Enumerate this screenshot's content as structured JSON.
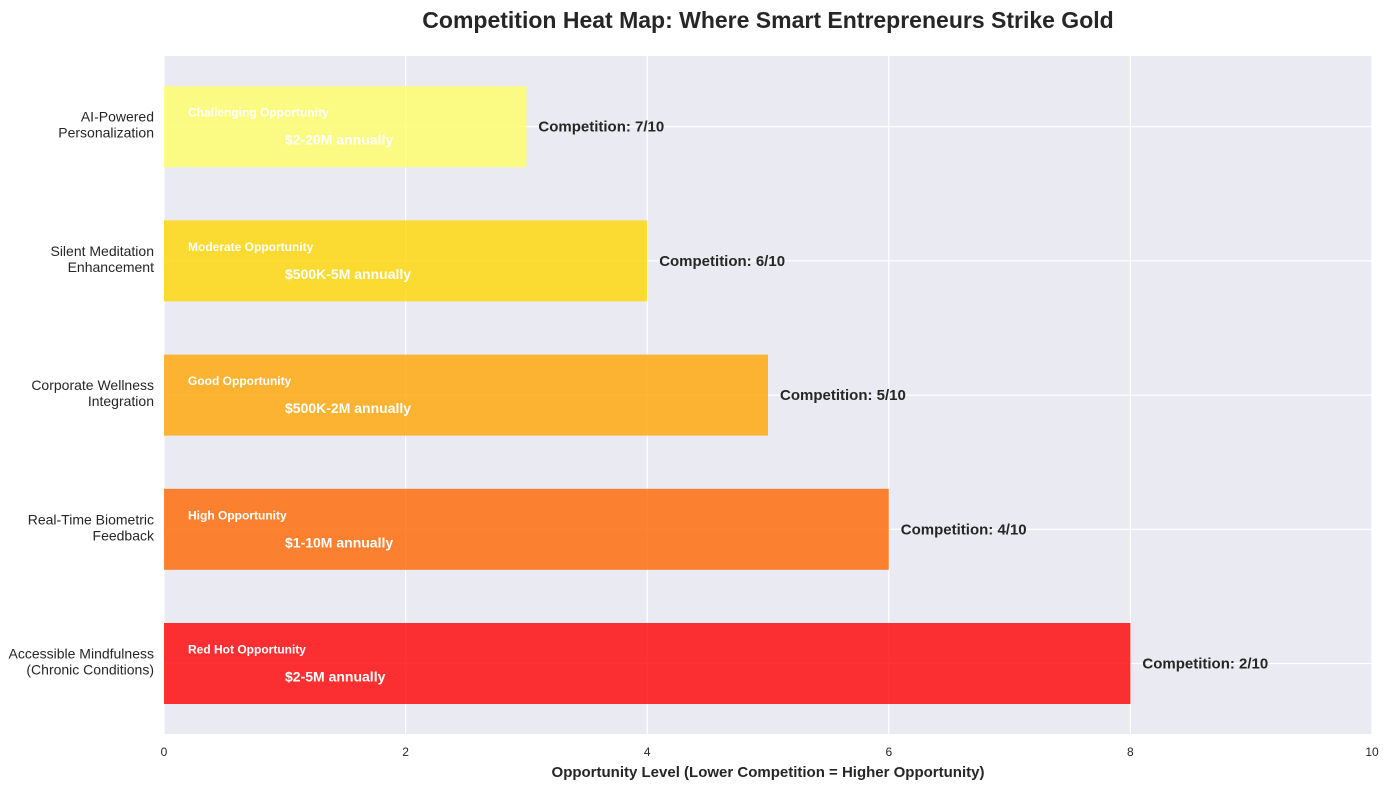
{
  "chart_data": {
    "type": "bar",
    "orientation": "horizontal",
    "title": "Competition Heat Map: Where Smart Entrepreneurs Strike Gold",
    "xlabel": "Opportunity Level (Lower Competition = Higher Opportunity)",
    "ylabel": "",
    "xlim": [
      0,
      10
    ],
    "xticks": [
      "0",
      "2",
      "4",
      "6",
      "8",
      "10"
    ],
    "grid": true,
    "categories": [
      [
        "Accessible Mindfulness",
        "(Chronic Conditions)"
      ],
      [
        "Real-Time Biometric",
        "Feedback"
      ],
      [
        "Corporate Wellness",
        "Integration"
      ],
      [
        "Silent Meditation",
        "Enhancement"
      ],
      [
        "AI-Powered",
        "Personalization"
      ]
    ],
    "values": [
      8,
      6,
      5,
      4,
      3
    ],
    "colors": [
      "#ff0000",
      "#ff6600",
      "#ffa500",
      "#ffd700",
      "#ffff66"
    ],
    "opportunity_labels": [
      "Red Hot Opportunity",
      "High Opportunity",
      "Good Opportunity",
      "Moderate Opportunity",
      "Challenging Opportunity"
    ],
    "market_labels": [
      "$2-5M annually",
      "$1-10M annually",
      "$500K-2M annually",
      "$500K-5M annually",
      "$2-20M annually"
    ],
    "competition_labels": [
      "Competition: 2/10",
      "Competition: 4/10",
      "Competition: 5/10",
      "Competition: 6/10",
      "Competition: 7/10"
    ]
  }
}
